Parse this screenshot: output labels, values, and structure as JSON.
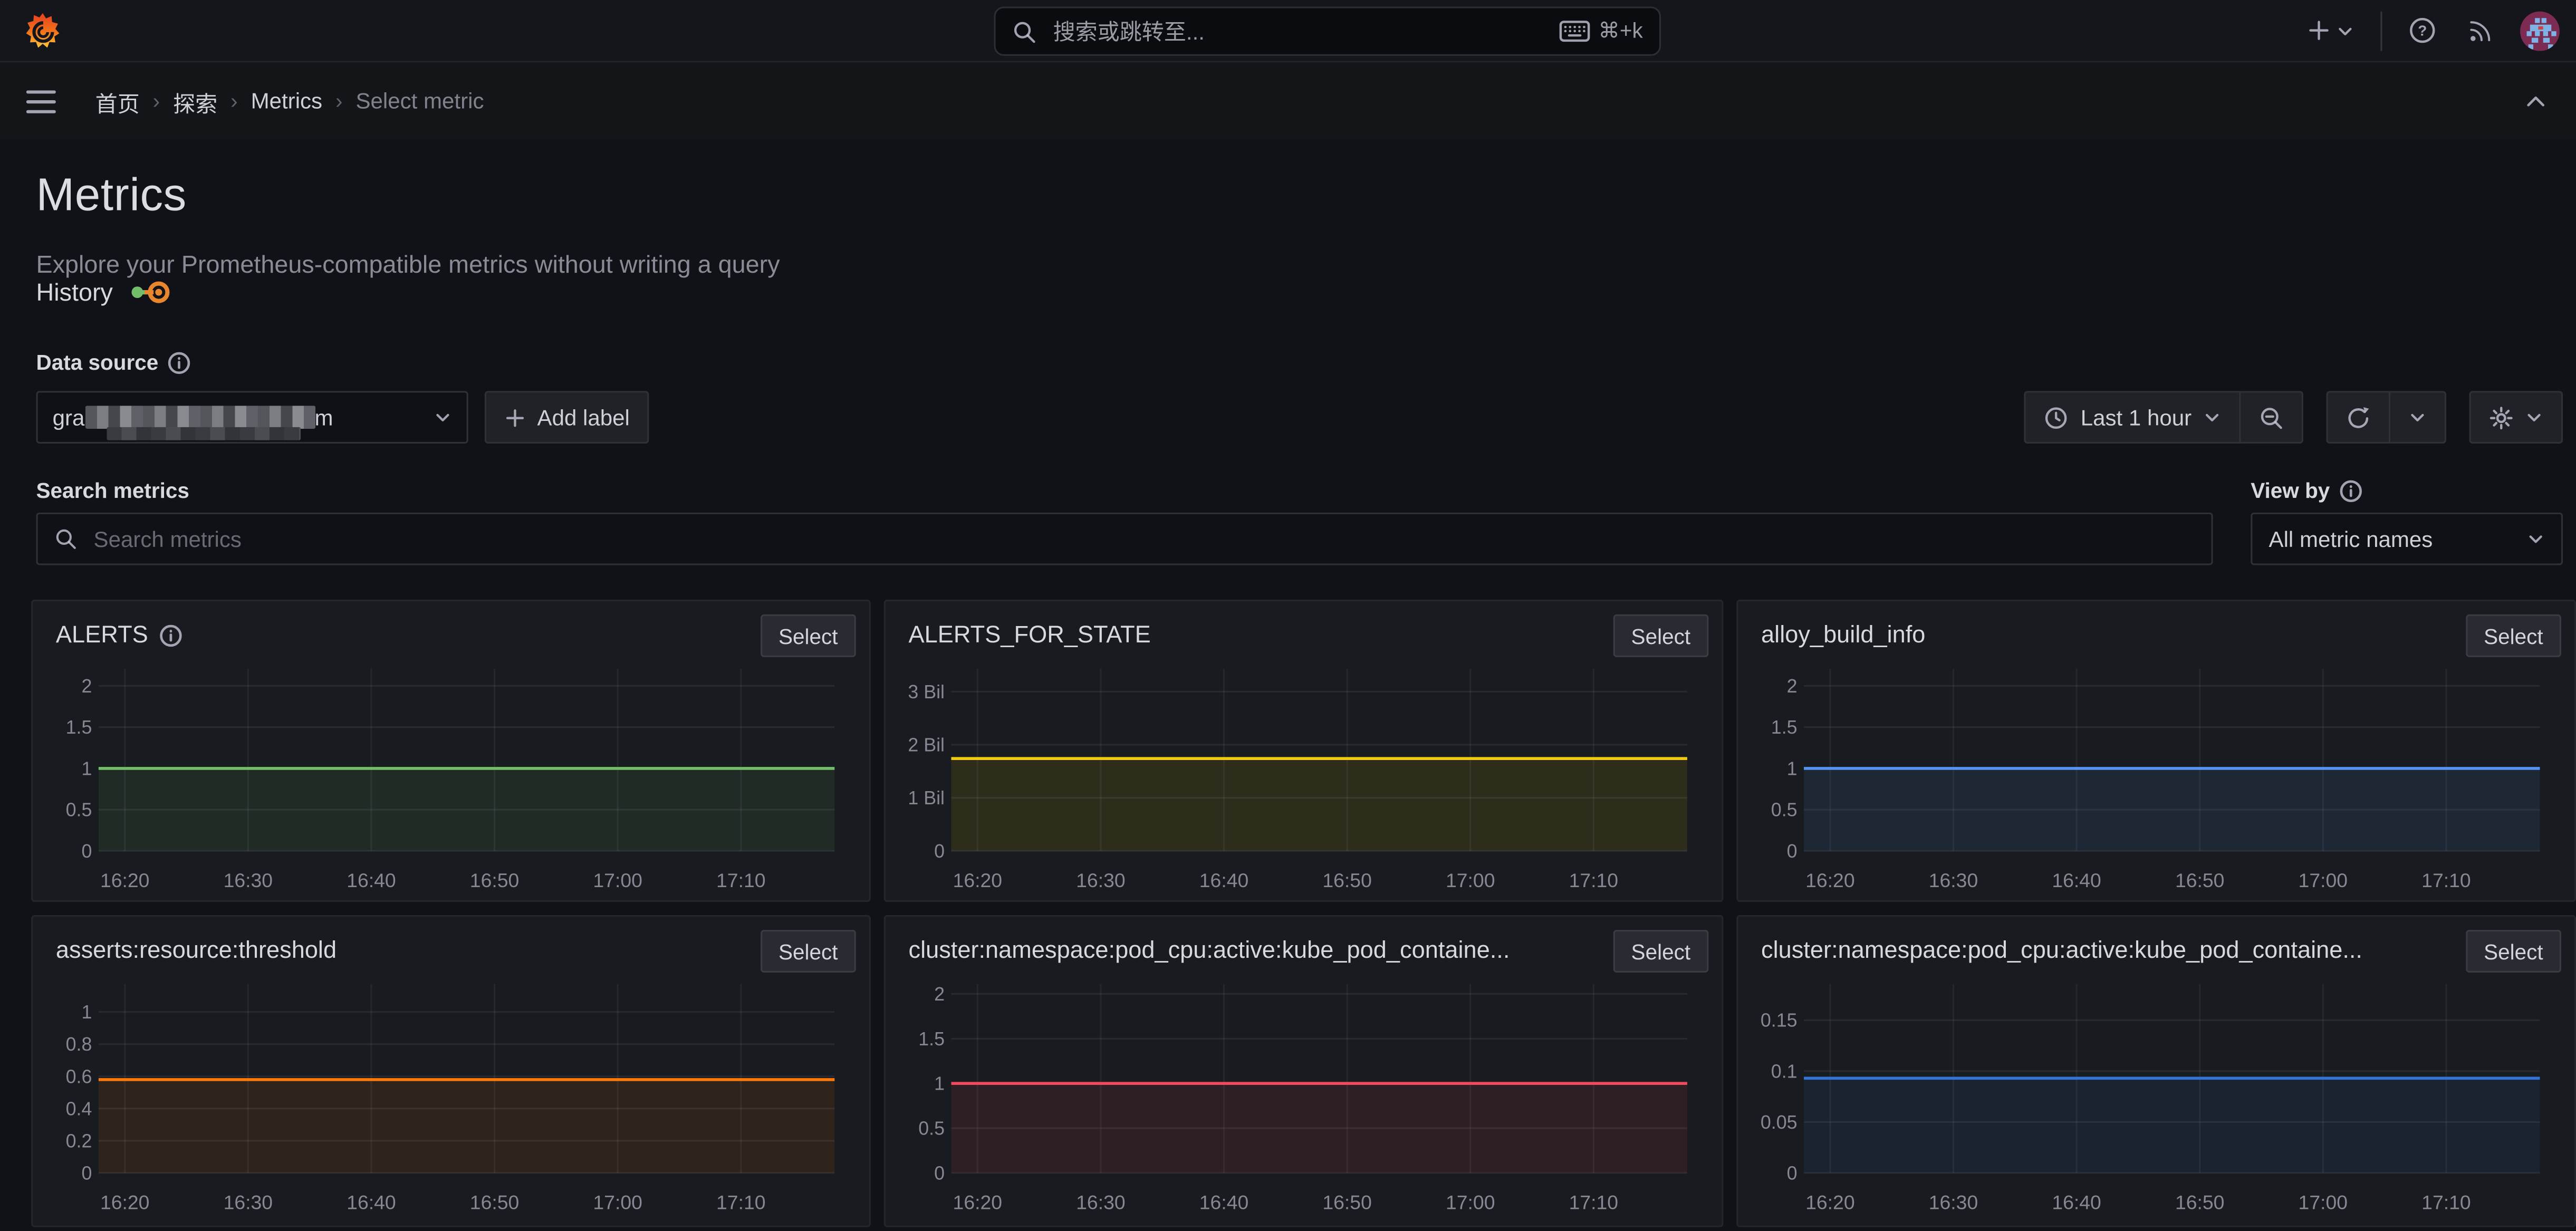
{
  "colors": {
    "page_bg": "#111217",
    "panel_bg": "#181b1f",
    "topbar_bg": "#15161b",
    "text_primary": "#d0d1d8",
    "text_secondary": "#8e909c",
    "green": "#73bf69",
    "yellow": "#f2cc0c",
    "blue": "#5794f2",
    "orange": "#ff780a",
    "red": "#f2495c",
    "dark_blue": "#3274d9",
    "logo_orange": "#f2741b"
  },
  "topbar": {
    "search_placeholder": "搜索或跳转至...",
    "shortcut": "⌘+k"
  },
  "breadcrumb": {
    "separator": "›",
    "items": [
      "首页",
      "探索",
      "Metrics",
      "Select metric"
    ]
  },
  "page": {
    "title": "Metrics",
    "subtitle": "Explore your Prometheus-compatible metrics without writing a query",
    "history_label": "History"
  },
  "datasource": {
    "label": "Data source",
    "value_visible_prefix": "gra",
    "value_visible_suffix": "m",
    "add_label_button": "Add label"
  },
  "toolbar": {
    "time_range": "Last 1 hour"
  },
  "search": {
    "label": "Search metrics",
    "placeholder": "Search metrics"
  },
  "view_by": {
    "label": "View by",
    "value": "All metric names"
  },
  "chart_data": {
    "type": "area",
    "select_button": "Select",
    "x_ticks": [
      "16:20",
      "16:30",
      "16:40",
      "16:50",
      "17:00",
      "17:10"
    ],
    "panels": [
      {
        "title": "ALERTS",
        "has_info": true,
        "color": "#73bf69",
        "value": 1,
        "ylim": [
          0,
          2.2
        ],
        "yticks": [
          {
            "value": 0,
            "label": "0"
          },
          {
            "value": 0.5,
            "label": "0.5"
          },
          {
            "value": 1,
            "label": "1"
          },
          {
            "value": 1.5,
            "label": "1.5"
          },
          {
            "value": 2,
            "label": "2"
          }
        ]
      },
      {
        "title": "ALERTS_FOR_STATE",
        "has_info": false,
        "color": "#f2cc0c",
        "value": 1740000000,
        "ylim": [
          0,
          3450000000
        ],
        "yticks": [
          {
            "value": 0,
            "label": "0"
          },
          {
            "value": 1000000000,
            "label": "1 Bil"
          },
          {
            "value": 2000000000,
            "label": "2 Bil"
          },
          {
            "value": 3000000000,
            "label": "3 Bil"
          }
        ]
      },
      {
        "title": "alloy_build_info",
        "has_info": false,
        "color": "#5794f2",
        "value": 1,
        "ylim": [
          0,
          2.2
        ],
        "yticks": [
          {
            "value": 0,
            "label": "0"
          },
          {
            "value": 0.5,
            "label": "0.5"
          },
          {
            "value": 1,
            "label": "1"
          },
          {
            "value": 1.5,
            "label": "1.5"
          },
          {
            "value": 2,
            "label": "2"
          }
        ]
      },
      {
        "title": "asserts:resource:threshold",
        "has_info": false,
        "color": "#ff780a",
        "value": 0.58,
        "ylim": [
          0,
          1.15
        ],
        "yticks": [
          {
            "value": 0,
            "label": "0"
          },
          {
            "value": 0.2,
            "label": "0.2"
          },
          {
            "value": 0.4,
            "label": "0.4"
          },
          {
            "value": 0.6,
            "label": "0.6"
          },
          {
            "value": 0.8,
            "label": "0.8"
          },
          {
            "value": 1,
            "label": "1"
          }
        ]
      },
      {
        "title": "cluster:namespace:pod_cpu:active:kube_pod_containe...",
        "has_info": false,
        "color": "#f2495c",
        "value": 1,
        "ylim": [
          0,
          2.2
        ],
        "yticks": [
          {
            "value": 0,
            "label": "0"
          },
          {
            "value": 0.5,
            "label": "0.5"
          },
          {
            "value": 1,
            "label": "1"
          },
          {
            "value": 1.5,
            "label": "1.5"
          },
          {
            "value": 2,
            "label": "2"
          }
        ]
      },
      {
        "title": "cluster:namespace:pod_cpu:active:kube_pod_containe...",
        "has_info": false,
        "color": "#3274d9",
        "value": 0.093,
        "ylim": [
          0,
          0.185
        ],
        "yticks": [
          {
            "value": 0,
            "label": "0"
          },
          {
            "value": 0.05,
            "label": "0.05"
          },
          {
            "value": 0.1,
            "label": "0.1"
          },
          {
            "value": 0.15,
            "label": "0.15"
          }
        ]
      }
    ]
  }
}
